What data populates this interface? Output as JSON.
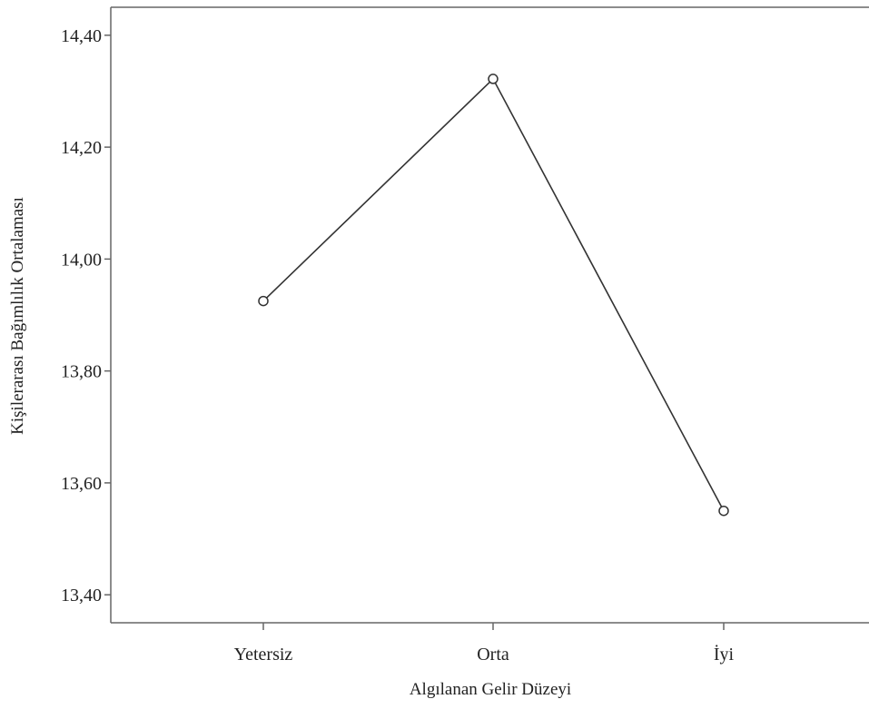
{
  "chart_data": {
    "type": "line",
    "title": "",
    "xlabel": "Algılanan Gelir Düzeyi",
    "ylabel": "Kişilerarası Bağımlılık Ortalaması",
    "categories": [
      "Yetersiz",
      "Orta",
      "İyi"
    ],
    "series": [
      {
        "values": [
          13.925,
          14.322,
          13.55
        ]
      }
    ],
    "ylim": [
      13.35,
      14.45
    ],
    "yticks": [
      13.4,
      13.6,
      13.8,
      14.0,
      14.2,
      14.4
    ],
    "ytick_labels": [
      "13,40",
      "13,60",
      "13,80",
      "14,00",
      "14,20",
      "14,40"
    ],
    "grid": false,
    "legend": "none",
    "line_color": "#333333",
    "axis_color": "#666666"
  }
}
